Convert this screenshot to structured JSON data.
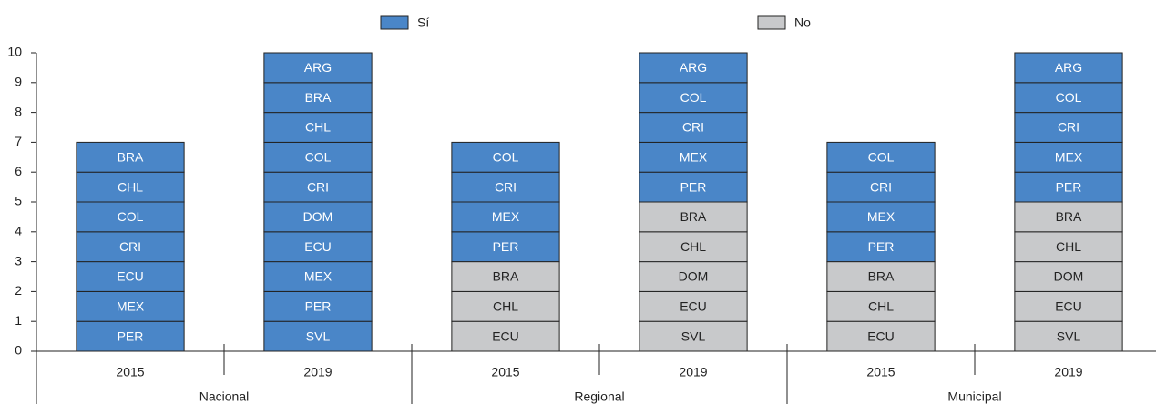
{
  "chart_data": {
    "type": "stacked_unit_bar",
    "series": [
      {
        "name": "Sí",
        "color": "#4a86c8"
      },
      {
        "name": "No",
        "color": "#c8c9cb"
      }
    ],
    "ylim": [
      0,
      10
    ],
    "yticks": [
      0,
      1,
      2,
      3,
      4,
      5,
      6,
      7,
      8,
      9,
      10
    ],
    "groups": [
      {
        "name": "Nacional",
        "bars": [
          {
            "category": "2015",
            "blocks": [
              {
                "label": "PER",
                "value": 1,
                "status": "Sí"
              },
              {
                "label": "MEX",
                "value": 1,
                "status": "Sí"
              },
              {
                "label": "ECU",
                "value": 1,
                "status": "Sí"
              },
              {
                "label": "CRI",
                "value": 1,
                "status": "Sí"
              },
              {
                "label": "COL",
                "value": 1,
                "status": "Sí"
              },
              {
                "label": "CHL",
                "value": 1,
                "status": "Sí"
              },
              {
                "label": "BRA",
                "value": 1,
                "status": "Sí"
              }
            ]
          },
          {
            "category": "2019",
            "blocks": [
              {
                "label": "SVL",
                "value": 1,
                "status": "Sí"
              },
              {
                "label": "PER",
                "value": 1,
                "status": "Sí"
              },
              {
                "label": "MEX",
                "value": 1,
                "status": "Sí"
              },
              {
                "label": "ECU",
                "value": 1,
                "status": "Sí"
              },
              {
                "label": "DOM",
                "value": 1,
                "status": "Sí"
              },
              {
                "label": "CRI",
                "value": 1,
                "status": "Sí"
              },
              {
                "label": "COL",
                "value": 1,
                "status": "Sí"
              },
              {
                "label": "CHL",
                "value": 1,
                "status": "Sí"
              },
              {
                "label": "BRA",
                "value": 1,
                "status": "Sí"
              },
              {
                "label": "ARG",
                "value": 1,
                "status": "Sí"
              }
            ]
          }
        ]
      },
      {
        "name": "Regional",
        "bars": [
          {
            "category": "2015",
            "blocks": [
              {
                "label": "ECU",
                "value": 1,
                "status": "No"
              },
              {
                "label": "CHL",
                "value": 1,
                "status": "No"
              },
              {
                "label": "BRA",
                "value": 1,
                "status": "No"
              },
              {
                "label": "PER",
                "value": 1,
                "status": "Sí"
              },
              {
                "label": "MEX",
                "value": 1,
                "status": "Sí"
              },
              {
                "label": "CRI",
                "value": 1,
                "status": "Sí"
              },
              {
                "label": "COL",
                "value": 1,
                "status": "Sí"
              }
            ]
          },
          {
            "category": "2019",
            "blocks": [
              {
                "label": "SVL",
                "value": 1,
                "status": "No"
              },
              {
                "label": "ECU",
                "value": 1,
                "status": "No"
              },
              {
                "label": "DOM",
                "value": 1,
                "status": "No"
              },
              {
                "label": "CHL",
                "value": 1,
                "status": "No"
              },
              {
                "label": "BRA",
                "value": 1,
                "status": "No"
              },
              {
                "label": "PER",
                "value": 1,
                "status": "Sí"
              },
              {
                "label": "MEX",
                "value": 1,
                "status": "Sí"
              },
              {
                "label": "CRI",
                "value": 1,
                "status": "Sí"
              },
              {
                "label": "COL",
                "value": 1,
                "status": "Sí"
              },
              {
                "label": "ARG",
                "value": 1,
                "status": "Sí"
              }
            ]
          }
        ]
      },
      {
        "name": "Municipal",
        "bars": [
          {
            "category": "2015",
            "blocks": [
              {
                "label": "ECU",
                "value": 1,
                "status": "No"
              },
              {
                "label": "CHL",
                "value": 1,
                "status": "No"
              },
              {
                "label": "BRA",
                "value": 1,
                "status": "No"
              },
              {
                "label": "PER",
                "value": 1,
                "status": "Sí"
              },
              {
                "label": "MEX",
                "value": 1,
                "status": "Sí"
              },
              {
                "label": "CRI",
                "value": 1,
                "status": "Sí"
              },
              {
                "label": "COL",
                "value": 1,
                "status": "Sí"
              }
            ]
          },
          {
            "category": "2019",
            "blocks": [
              {
                "label": "SVL",
                "value": 1,
                "status": "No"
              },
              {
                "label": "ECU",
                "value": 1,
                "status": "No"
              },
              {
                "label": "DOM",
                "value": 1,
                "status": "No"
              },
              {
                "label": "CHL",
                "value": 1,
                "status": "No"
              },
              {
                "label": "BRA",
                "value": 1,
                "status": "No"
              },
              {
                "label": "PER",
                "value": 1,
                "status": "Sí"
              },
              {
                "label": "MEX",
                "value": 1,
                "status": "Sí"
              },
              {
                "label": "CRI",
                "value": 1,
                "status": "Sí"
              },
              {
                "label": "COL",
                "value": 1,
                "status": "Sí"
              },
              {
                "label": "ARG",
                "value": 1,
                "status": "Sí"
              }
            ]
          }
        ]
      }
    ]
  }
}
